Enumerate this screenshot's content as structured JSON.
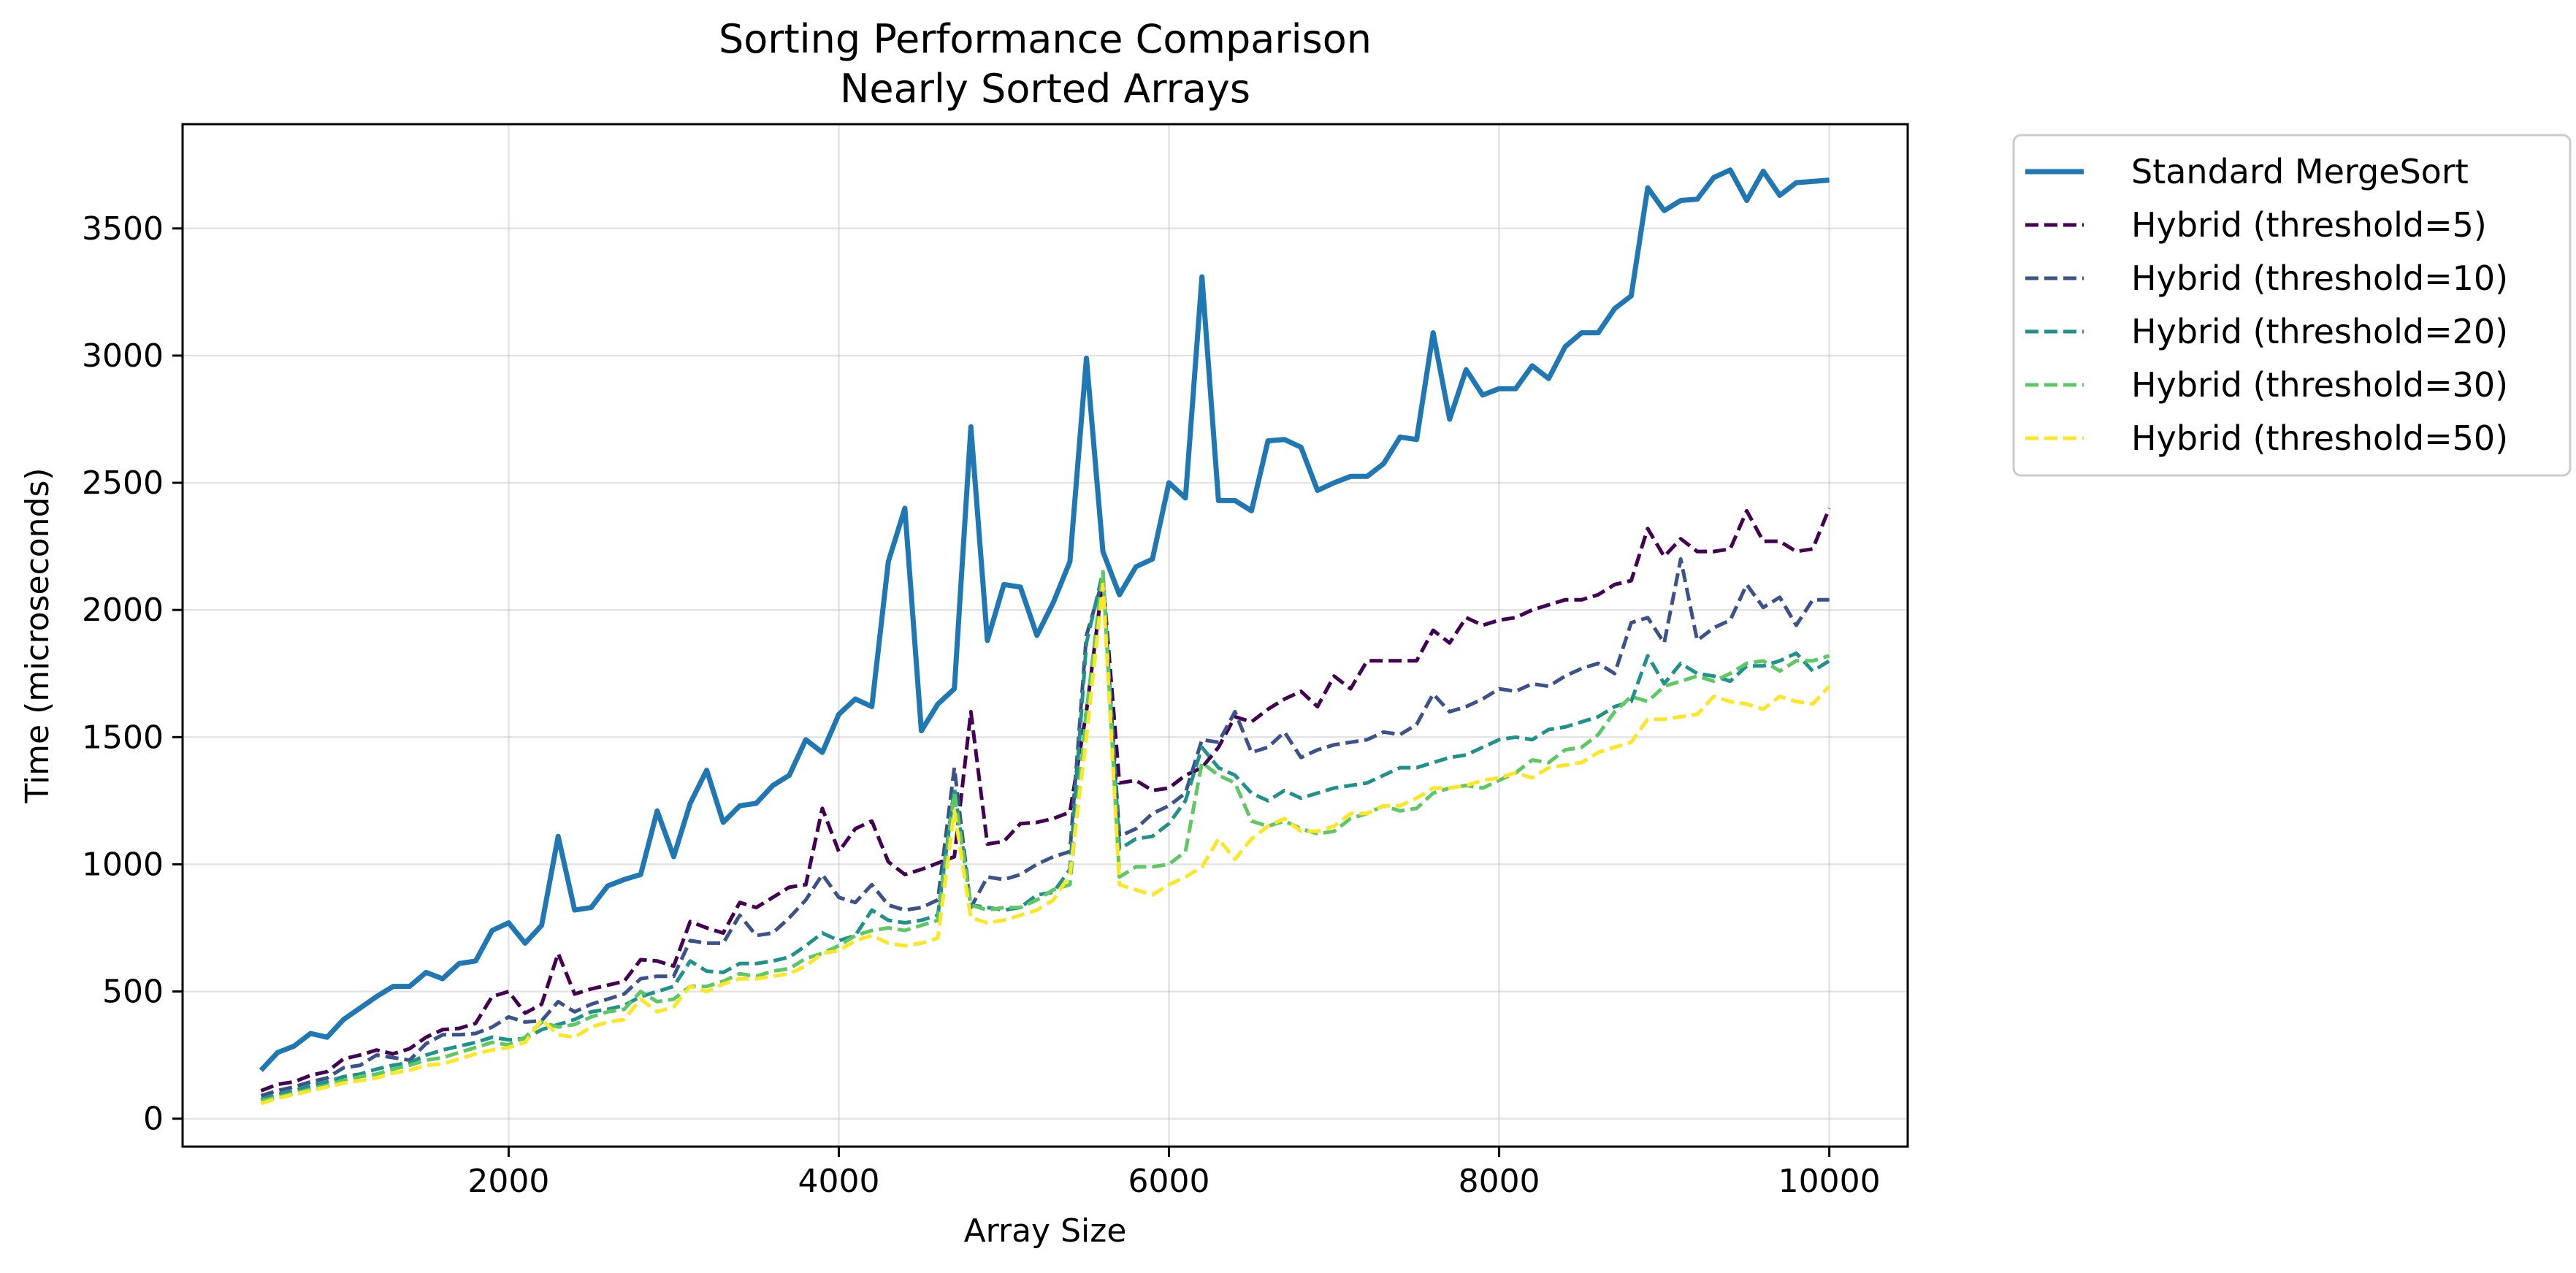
{
  "chart_data": {
    "type": "line",
    "title_lines": [
      "Sorting Performance Comparison",
      "Nearly Sorted Arrays"
    ],
    "xlabel": "Array Size",
    "ylabel": "Time (microseconds)",
    "xlim": [
      25,
      10475
    ],
    "ylim": [
      -110,
      3910
    ],
    "xticks": [
      2000,
      4000,
      6000,
      8000,
      10000
    ],
    "yticks": [
      0,
      500,
      1000,
      1500,
      2000,
      2500,
      3000,
      3500
    ],
    "grid": true,
    "legend_position": "outside-top-right",
    "x": [
      500,
      600,
      700,
      800,
      900,
      1000,
      1100,
      1200,
      1300,
      1400,
      1500,
      1600,
      1700,
      1800,
      1900,
      2000,
      2100,
      2200,
      2300,
      2400,
      2500,
      2600,
      2700,
      2800,
      2900,
      3000,
      3100,
      3200,
      3300,
      3400,
      3500,
      3600,
      3700,
      3800,
      3900,
      4000,
      4100,
      4200,
      4300,
      4400,
      4500,
      4600,
      4700,
      4800,
      4900,
      5000,
      5100,
      5200,
      5300,
      5400,
      5500,
      5600,
      5700,
      5800,
      5900,
      6000,
      6100,
      6200,
      6300,
      6400,
      6500,
      6600,
      6700,
      6800,
      6900,
      7000,
      7100,
      7200,
      7300,
      7400,
      7500,
      7600,
      7700,
      7800,
      7900,
      8000,
      8100,
      8200,
      8300,
      8400,
      8500,
      8600,
      8700,
      8800,
      8900,
      9000,
      9100,
      9200,
      9300,
      9400,
      9500,
      9600,
      9700,
      9800,
      9900,
      10000
    ],
    "series": [
      {
        "name": "Standard MergeSort",
        "color": "#1f77b4",
        "dash": "solid",
        "values": [
          190,
          260,
          285,
          335,
          320,
          390,
          435,
          480,
          520,
          520,
          575,
          550,
          610,
          620,
          740,
          770,
          690,
          760,
          1110,
          820,
          830,
          915,
          940,
          960,
          1210,
          1030,
          1240,
          1370,
          1165,
          1230,
          1240,
          1310,
          1350,
          1490,
          1440,
          1590,
          1650,
          1620,
          2190,
          2400,
          1525,
          1630,
          1690,
          2720,
          1880,
          2100,
          2090,
          1900,
          2030,
          2190,
          2990,
          2230,
          2060,
          2170,
          2200,
          2500,
          2440,
          3310,
          2430,
          2430,
          2390,
          2665,
          2670,
          2640,
          2470,
          2500,
          2525,
          2525,
          2575,
          2680,
          2670,
          3090,
          2750,
          2945,
          2845,
          2870,
          2870,
          2960,
          2910,
          3035,
          3090,
          3090,
          3185,
          3235,
          3660,
          3570,
          3610,
          3615,
          3700,
          3730,
          3610,
          3725,
          3630,
          3680,
          3685,
          3690
        ]
      },
      {
        "name": "Hybrid (threshold=5)",
        "color": "#440154",
        "dash": "dashed",
        "values": [
          110,
          135,
          145,
          170,
          185,
          235,
          250,
          270,
          255,
          275,
          320,
          350,
          355,
          375,
          480,
          500,
          415,
          450,
          650,
          490,
          510,
          525,
          540,
          625,
          620,
          600,
          775,
          750,
          730,
          850,
          830,
          870,
          910,
          920,
          1220,
          1050,
          1140,
          1170,
          1010,
          960,
          980,
          1005,
          1030,
          1600,
          1080,
          1090,
          1160,
          1165,
          1180,
          1205,
          1600,
          2120,
          1320,
          1330,
          1290,
          1300,
          1350,
          1380,
          1460,
          1580,
          1560,
          1610,
          1650,
          1680,
          1620,
          1740,
          1690,
          1800,
          1800,
          1800,
          1800,
          1920,
          1870,
          1970,
          1940,
          1960,
          1970,
          2000,
          2020,
          2040,
          2040,
          2060,
          2100,
          2115,
          2320,
          2210,
          2280,
          2230,
          2230,
          2240,
          2390,
          2270,
          2270,
          2230,
          2240,
          2400
        ]
      },
      {
        "name": "Hybrid (threshold=10)",
        "color": "#3b528b",
        "dash": "dashed",
        "values": [
          90,
          110,
          125,
          145,
          160,
          200,
          210,
          250,
          240,
          230,
          295,
          330,
          330,
          335,
          360,
          400,
          380,
          385,
          460,
          420,
          450,
          470,
          490,
          550,
          560,
          560,
          700,
          690,
          690,
          800,
          720,
          730,
          790,
          860,
          960,
          870,
          850,
          920,
          840,
          820,
          830,
          860,
          1380,
          830,
          950,
          940,
          960,
          1000,
          1030,
          1050,
          1900,
          2120,
          1110,
          1140,
          1200,
          1230,
          1280,
          1490,
          1480,
          1600,
          1440,
          1460,
          1520,
          1420,
          1450,
          1470,
          1480,
          1490,
          1520,
          1510,
          1550,
          1670,
          1600,
          1620,
          1650,
          1690,
          1680,
          1710,
          1700,
          1740,
          1770,
          1790,
          1750,
          1950,
          1970,
          1870,
          2200,
          1880,
          1930,
          1960,
          2100,
          2010,
          2050,
          1940,
          2040,
          2040
        ]
      },
      {
        "name": "Hybrid (threshold=20)",
        "color": "#21918c",
        "dash": "dashed",
        "values": [
          75,
          95,
          110,
          130,
          145,
          165,
          175,
          195,
          210,
          220,
          250,
          270,
          285,
          300,
          320,
          310,
          315,
          350,
          370,
          390,
          420,
          430,
          445,
          480,
          500,
          520,
          620,
          580,
          575,
          610,
          610,
          620,
          635,
          680,
          730,
          700,
          720,
          820,
          780,
          770,
          780,
          800,
          1300,
          840,
          830,
          820,
          830,
          880,
          890,
          980,
          1870,
          2150,
          1060,
          1100,
          1110,
          1160,
          1250,
          1460,
          1380,
          1350,
          1280,
          1250,
          1290,
          1260,
          1280,
          1300,
          1310,
          1320,
          1350,
          1380,
          1380,
          1400,
          1420,
          1430,
          1460,
          1490,
          1500,
          1490,
          1530,
          1540,
          1560,
          1580,
          1620,
          1640,
          1820,
          1710,
          1790,
          1750,
          1740,
          1720,
          1780,
          1780,
          1800,
          1830,
          1760,
          1800
        ]
      },
      {
        "name": "Hybrid (threshold=30)",
        "color": "#5ec962",
        "dash": "dashed",
        "values": [
          70,
          85,
          100,
          115,
          130,
          150,
          165,
          175,
          195,
          210,
          230,
          240,
          260,
          280,
          300,
          290,
          320,
          380,
          360,
          370,
          400,
          420,
          430,
          500,
          460,
          470,
          520,
          520,
          540,
          570,
          560,
          580,
          590,
          630,
          650,
          680,
          720,
          740,
          750,
          740,
          760,
          780,
          1280,
          840,
          820,
          830,
          830,
          860,
          900,
          920,
          1600,
          2150,
          950,
          990,
          990,
          1000,
          1050,
          1400,
          1350,
          1320,
          1170,
          1150,
          1170,
          1140,
          1120,
          1130,
          1180,
          1200,
          1230,
          1210,
          1220,
          1280,
          1300,
          1310,
          1300,
          1330,
          1360,
          1410,
          1400,
          1450,
          1460,
          1510,
          1600,
          1660,
          1640,
          1700,
          1720,
          1740,
          1720,
          1750,
          1790,
          1800,
          1760,
          1800,
          1800,
          1820
        ]
      },
      {
        "name": "Hybrid (threshold=50)",
        "color": "#fde725",
        "dash": "dashed",
        "values": [
          60,
          80,
          95,
          110,
          125,
          140,
          150,
          160,
          180,
          190,
          210,
          215,
          235,
          255,
          270,
          280,
          300,
          390,
          330,
          320,
          360,
          380,
          390,
          470,
          420,
          440,
          520,
          500,
          530,
          550,
          550,
          560,
          570,
          600,
          650,
          660,
          700,
          720,
          690,
          680,
          690,
          710,
          1210,
          790,
          770,
          780,
          800,
          820,
          860,
          960,
          1500,
          2100,
          920,
          900,
          880,
          920,
          950,
          990,
          1100,
          1020,
          1100,
          1150,
          1180,
          1130,
          1130,
          1150,
          1200,
          1200,
          1230,
          1230,
          1260,
          1300,
          1300,
          1310,
          1330,
          1340,
          1360,
          1340,
          1380,
          1390,
          1400,
          1440,
          1460,
          1480,
          1570,
          1570,
          1580,
          1590,
          1660,
          1640,
          1630,
          1610,
          1660,
          1640,
          1630,
          1700
        ]
      }
    ]
  }
}
